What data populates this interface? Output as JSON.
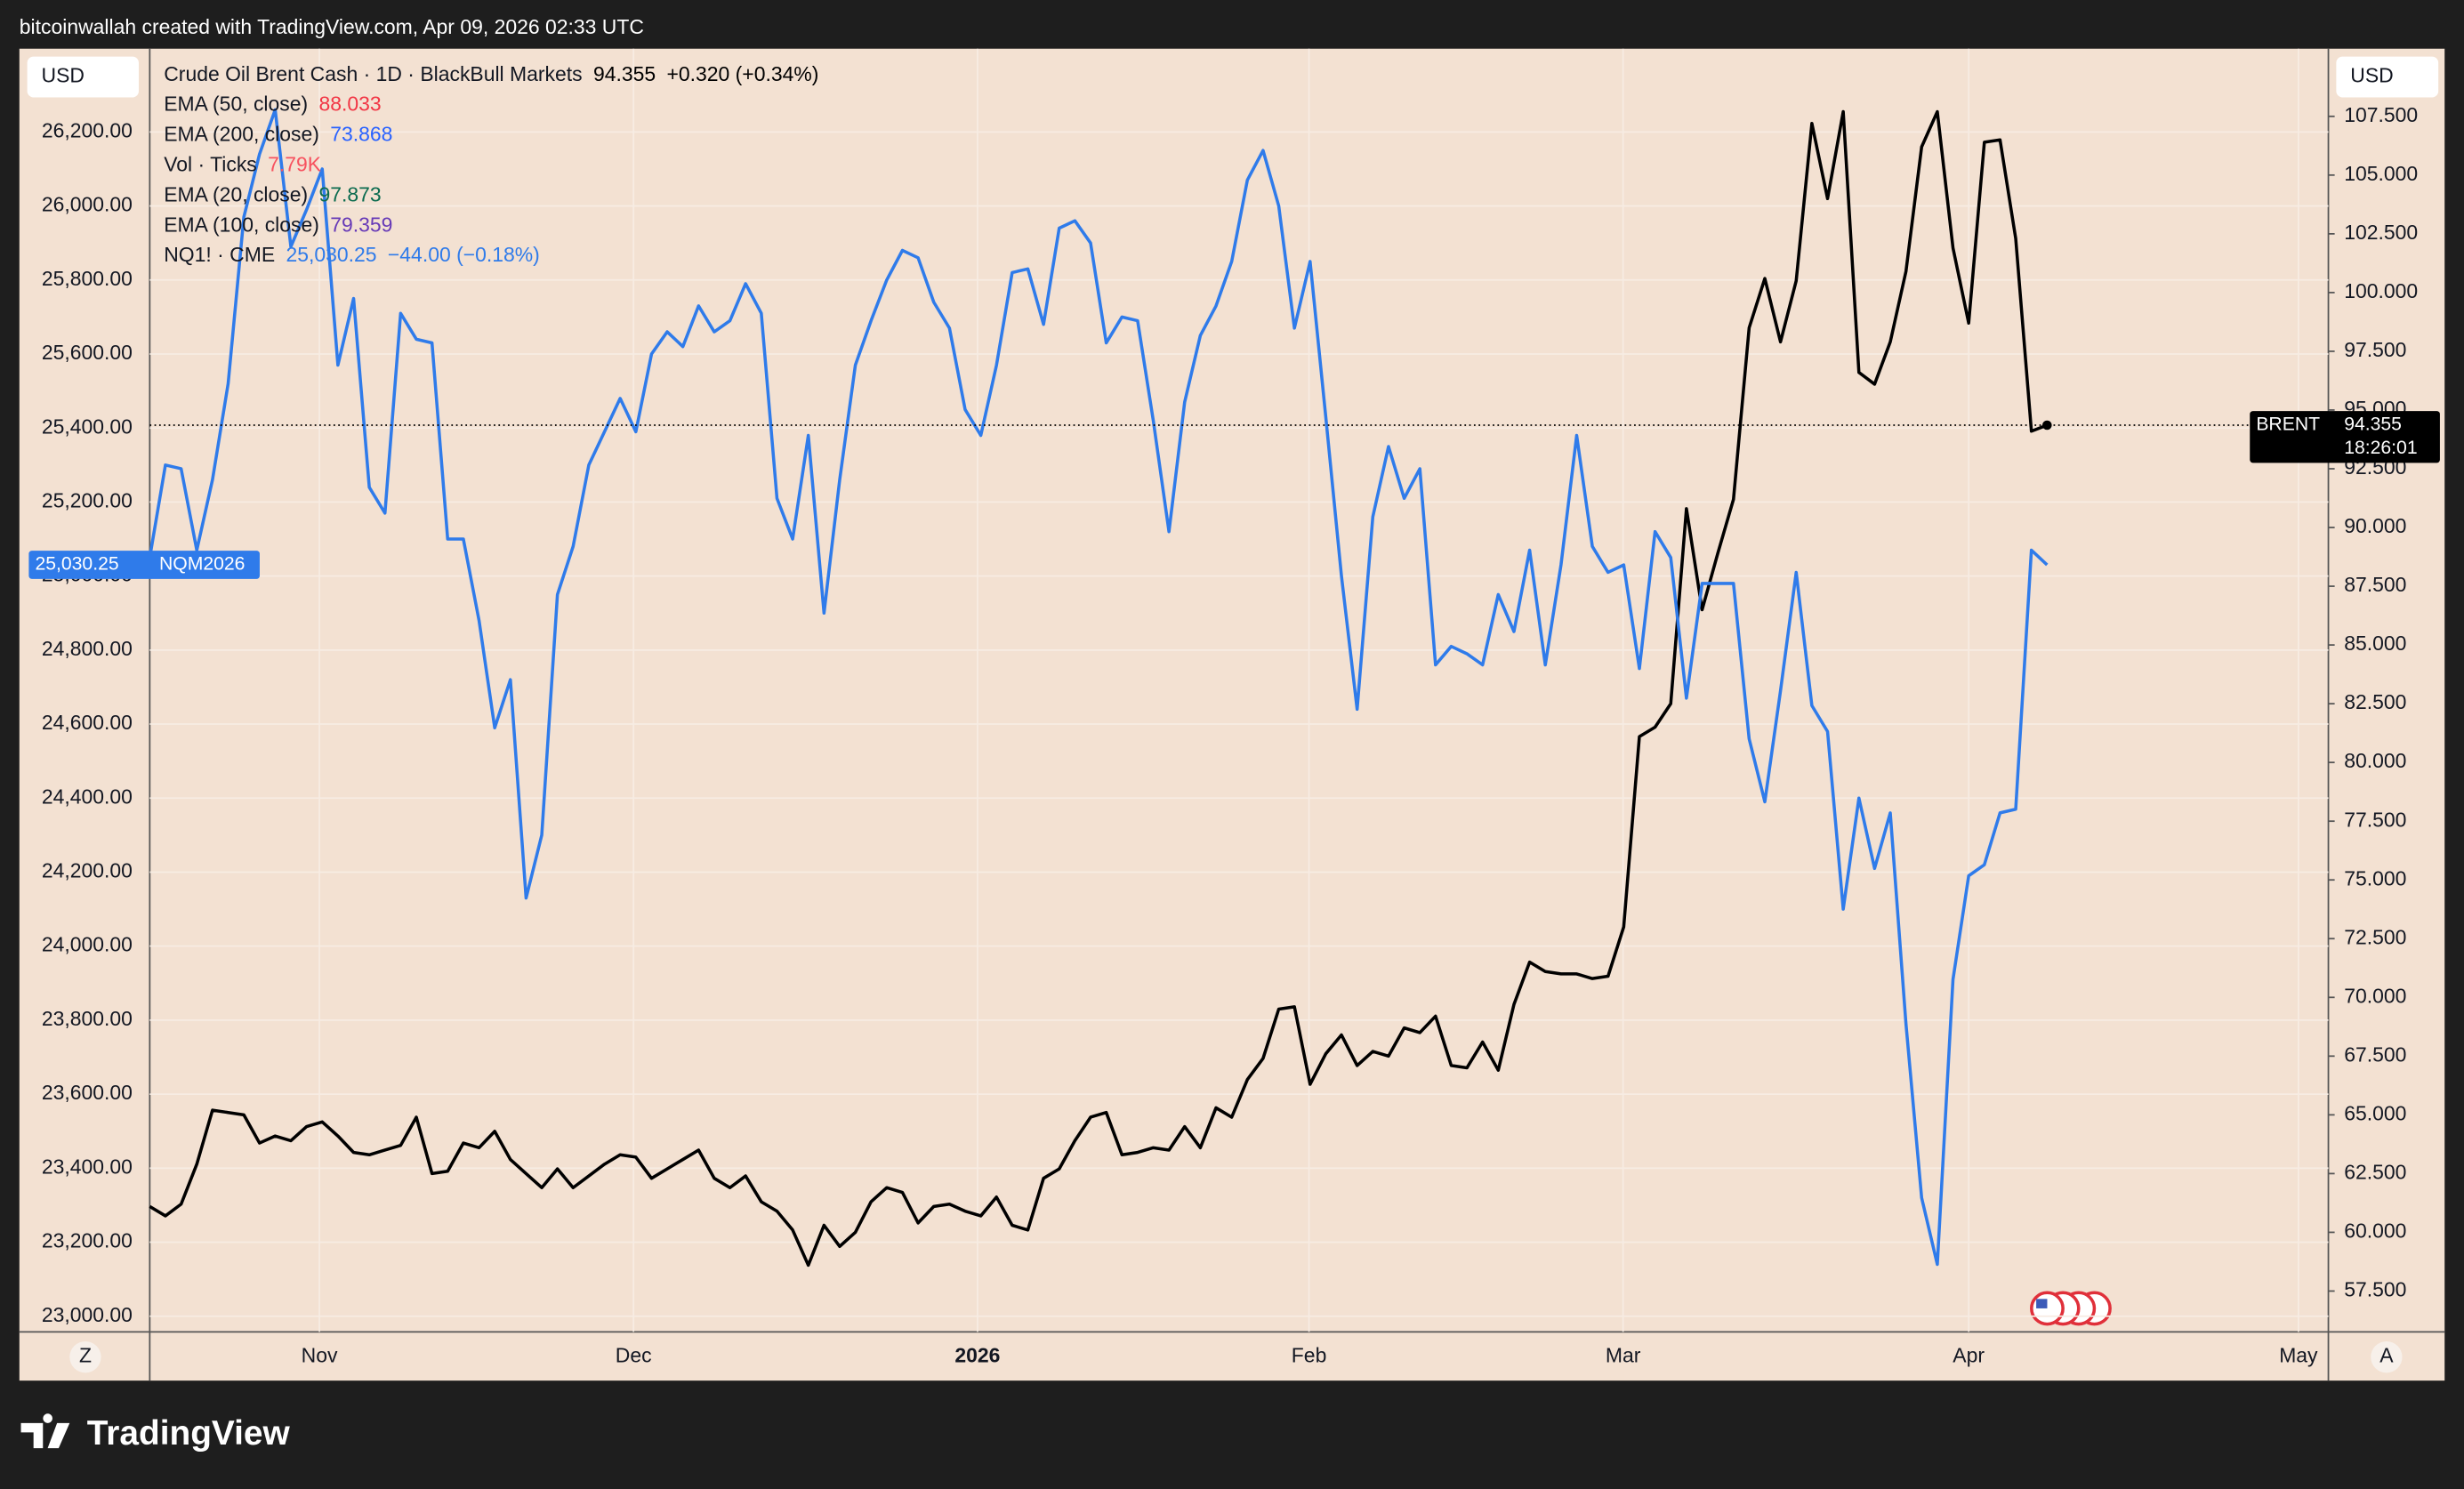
{
  "header": "bitcoinwallah created with TradingView.com, Apr 09, 2026 02:33 UTC",
  "footer": "TradingView",
  "chart_data": {
    "type": "line",
    "currency_left": "USD",
    "currency_right": "USD",
    "left_button": "Z",
    "right_button": "A",
    "categories": [
      null,
      null,
      null,
      null,
      null,
      null,
      null,
      null,
      null,
      null,
      null,
      null,
      null,
      null,
      null,
      null,
      null,
      null,
      null,
      null,
      null,
      null,
      null,
      null,
      null,
      null,
      null,
      null,
      null,
      null,
      null,
      null,
      null,
      null,
      null,
      null,
      null,
      null,
      null,
      null,
      null,
      null,
      null,
      null,
      null,
      null,
      null,
      null,
      null,
      null,
      null,
      null,
      null,
      null,
      null,
      null,
      null,
      null,
      null,
      null,
      null,
      null,
      null,
      null,
      null,
      null,
      null,
      null,
      null,
      null,
      null,
      null,
      null,
      null,
      null,
      null,
      null,
      null,
      null,
      null,
      null,
      null,
      null,
      null,
      null,
      null,
      null,
      null,
      null,
      null,
      null,
      null,
      null,
      null,
      null,
      null,
      null,
      null,
      null,
      null,
      null,
      null,
      null,
      null,
      null,
      null,
      null,
      null,
      null,
      null,
      null,
      null,
      null,
      null,
      null,
      null,
      null,
      null,
      null,
      null,
      null,
      null
    ],
    "xlim": [
      0,
      138.94
    ],
    "xticks": [
      {
        "value": 10.82,
        "label": "Nov"
      },
      {
        "value": 30.85,
        "label": "Dec"
      },
      {
        "value": 52.79,
        "label": "2026",
        "bold": true
      },
      {
        "value": 73.93,
        "label": "Feb"
      },
      {
        "value": 93.96,
        "label": "Mar"
      },
      {
        "value": 116.0,
        "label": "Apr"
      },
      {
        "value": 137.03,
        "label": "May"
      }
    ],
    "ylim": [
      22957.5,
      26425
    ],
    "yticks": [
      {
        "value": 23000,
        "label": "23,000.00"
      },
      {
        "value": 23200,
        "label": "23,200.00"
      },
      {
        "value": 23400,
        "label": "23,400.00"
      },
      {
        "value": 23600,
        "label": "23,600.00"
      },
      {
        "value": 23800,
        "label": "23,800.00"
      },
      {
        "value": 24000,
        "label": "24,000.00"
      },
      {
        "value": 24200,
        "label": "24,200.00"
      },
      {
        "value": 24400,
        "label": "24,400.00"
      },
      {
        "value": 24600,
        "label": "24,600.00"
      },
      {
        "value": 24800,
        "label": "24,800.00"
      },
      {
        "value": 25000,
        "label": "25,000.00"
      },
      {
        "value": 25200,
        "label": "25,200.00"
      },
      {
        "value": 25400,
        "label": "25,400.00"
      },
      {
        "value": 25600,
        "label": "25,600.00"
      },
      {
        "value": 25800,
        "label": "25,800.00"
      },
      {
        "value": 26000,
        "label": "26,000.00"
      },
      {
        "value": 26200,
        "label": "26,200.00"
      }
    ],
    "y2lim": [
      55.76,
      110.38
    ],
    "y2ticks": [
      {
        "value": 57.5,
        "label": "57.500"
      },
      {
        "value": 60,
        "label": "60.000"
      },
      {
        "value": 62.5,
        "label": "62.500"
      },
      {
        "value": 65,
        "label": "65.000"
      },
      {
        "value": 67.5,
        "label": "67.500"
      },
      {
        "value": 70,
        "label": "70.000"
      },
      {
        "value": 72.5,
        "label": "72.500"
      },
      {
        "value": 75,
        "label": "75.000"
      },
      {
        "value": 77.5,
        "label": "77.500"
      },
      {
        "value": 80,
        "label": "80.000"
      },
      {
        "value": 82.5,
        "label": "82.500"
      },
      {
        "value": 85,
        "label": "85.000"
      },
      {
        "value": 87.5,
        "label": "87.500"
      },
      {
        "value": 90,
        "label": "90.000"
      },
      {
        "value": 92.5,
        "label": "92.500"
      },
      {
        "value": 95,
        "label": "95.000"
      },
      {
        "value": 97.5,
        "label": "97.500"
      },
      {
        "value": 100,
        "label": "100.000"
      },
      {
        "value": 102.5,
        "label": "102.500"
      },
      {
        "value": 105,
        "label": "105.000"
      },
      {
        "value": 107.5,
        "label": "107.500"
      }
    ],
    "grid": true,
    "series": [
      {
        "name": "Crude Oil Brent Cash · 1D · BlackBull Markets",
        "legend_value": "94.355",
        "legend_change": "+0.320 (+0.34%)",
        "color": "#000000",
        "axis": "y2",
        "tag": "BRENT",
        "tag_value": "94.355",
        "countdown": "18:26:01",
        "values": [
          61.1,
          60.7,
          61.2,
          62.9,
          65.2,
          65.1,
          65.0,
          63.8,
          64.1,
          63.9,
          64.5,
          64.7,
          64.1,
          63.4,
          63.3,
          63.5,
          63.7,
          64.9,
          62.5,
          62.6,
          63.8,
          63.6,
          64.3,
          63.1,
          62.5,
          61.9,
          62.7,
          61.9,
          62.4,
          62.9,
          63.3,
          63.2,
          62.3,
          62.7,
          63.1,
          63.5,
          62.3,
          61.9,
          62.4,
          61.3,
          60.9,
          60.1,
          58.6,
          60.3,
          59.4,
          60.0,
          61.3,
          61.9,
          61.7,
          60.4,
          61.1,
          61.2,
          60.9,
          60.7,
          61.5,
          60.3,
          60.1,
          62.3,
          62.7,
          63.9,
          64.9,
          65.1,
          63.3,
          63.4,
          63.6,
          63.5,
          64.5,
          63.6,
          65.3,
          64.9,
          66.5,
          67.4,
          69.5,
          69.6,
          66.3,
          67.6,
          68.4,
          67.1,
          67.7,
          67.5,
          68.7,
          68.5,
          69.2,
          67.1,
          67.0,
          68.1,
          66.9,
          69.7,
          71.5,
          71.1,
          71.0,
          71.0,
          70.8,
          70.9,
          73.0,
          81.1,
          81.5,
          82.5,
          90.8,
          86.5,
          88.9,
          91.2,
          98.5,
          100.6,
          97.9,
          100.5,
          107.2,
          104.0,
          107.7,
          96.6,
          96.1,
          97.9,
          100.9,
          106.2,
          107.7,
          101.9,
          98.7,
          106.4,
          106.5,
          102.3,
          94.1,
          94.355
        ]
      },
      {
        "name": "NQ1! · CME",
        "legend_value": "25,030.25",
        "legend_change": "−44.00 (−0.18%)",
        "color": "#2f7bea",
        "axis": "y",
        "tag": "NQM2026",
        "tag_value": "25,030.25",
        "values": [
          25050,
          25300,
          25290,
          25070,
          25260,
          25520,
          25970,
          26140,
          26260,
          25890,
          25990,
          26100,
          25570,
          25750,
          25240,
          25170,
          25710,
          25640,
          25630,
          25100,
          25100,
          24880,
          24590,
          24720,
          24130,
          24300,
          24950,
          25080,
          25300,
          25390,
          25480,
          25390,
          25600,
          25660,
          25620,
          25730,
          25660,
          25690,
          25790,
          25710,
          25210,
          25100,
          25380,
          24900,
          25260,
          25570,
          25690,
          25800,
          25880,
          25860,
          25740,
          25670,
          25450,
          25380,
          25570,
          25820,
          25830,
          25680,
          25940,
          25960,
          25900,
          25630,
          25700,
          25690,
          25420,
          25120,
          25470,
          25650,
          25730,
          25850,
          26070,
          26150,
          26000,
          25670,
          25850,
          25430,
          25000,
          24640,
          25160,
          25350,
          25210,
          25290,
          24760,
          24810,
          24790,
          24760,
          24950,
          24850,
          25070,
          24760,
          25030,
          25380,
          25080,
          25010,
          25030,
          24750,
          25120,
          25050,
          24670,
          24980,
          24980,
          24980,
          24560,
          24390,
          24690,
          25010,
          24650,
          24580,
          24100,
          24400,
          24210,
          24360,
          23790,
          23320,
          23140,
          23910,
          24190,
          24220,
          24360,
          24370,
          25070,
          25030.25
        ]
      }
    ],
    "indicators": [
      {
        "name": "EMA (50, close)",
        "value": "88.033",
        "color": "#f23645"
      },
      {
        "name": "EMA (200, close)",
        "value": "73.868",
        "color": "#2962ff"
      },
      {
        "name": "Vol · Ticks",
        "value": "7.79K",
        "color": "#f7525f"
      },
      {
        "name": "EMA (20, close)",
        "value": "97.873",
        "color": "#0b6b4f"
      },
      {
        "name": "EMA (100, close)",
        "value": "79.359",
        "color": "#673ab7"
      }
    ]
  }
}
